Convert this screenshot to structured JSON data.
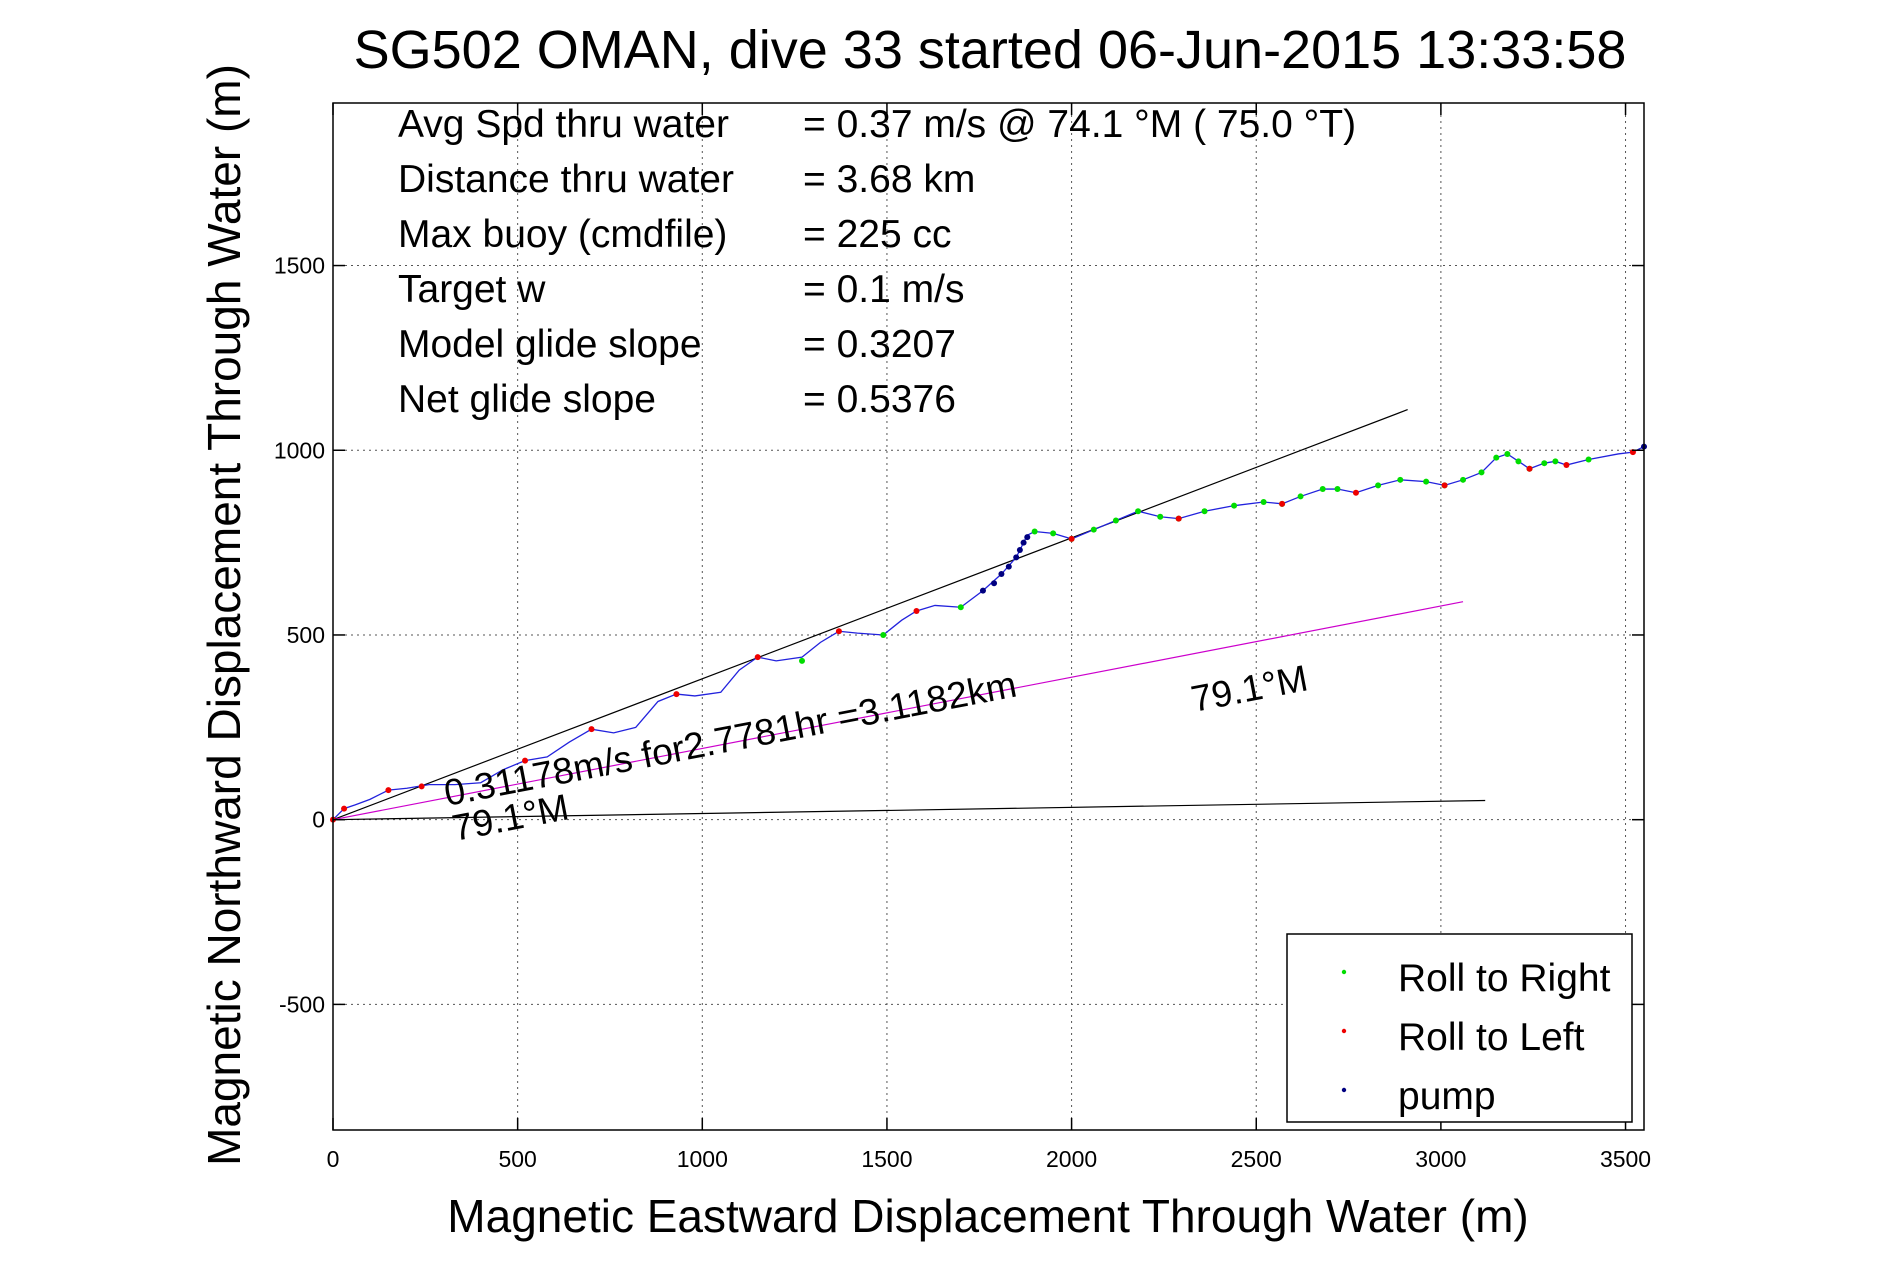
{
  "chart_data": {
    "type": "line",
    "title": "SG502 OMAN, dive 33 started 06-Jun-2015 13:33:58",
    "xlabel": "Magnetic Eastward Displacement Through Water (m)",
    "ylabel": "Magnetic Northward Displacement Through Water (m)",
    "xlim": [
      0,
      3550
    ],
    "ylim": [
      -840,
      1940
    ],
    "xticks": [
      0,
      500,
      1000,
      1500,
      2000,
      2500,
      3000,
      3500
    ],
    "xtick_labels": [
      "0",
      "500",
      "1000",
      "1500",
      "2000",
      "2500",
      "3000",
      "3500"
    ],
    "yticks": [
      -500,
      0,
      500,
      1000,
      1500
    ],
    "ytick_labels": [
      "-500",
      "0",
      "500",
      "1000",
      "1500"
    ],
    "grid": true,
    "legend_position": "bottom-right",
    "info_lines": [
      {
        "label": "Avg Spd thru water",
        "value": "=  0.37 m/s @  74.1 °M ( 75.0 °T)"
      },
      {
        "label": "Distance thru water",
        "value": "=  3.68 km"
      },
      {
        "label": "Max buoy (cmdfile)",
        "value": "= 225 cc"
      },
      {
        "label": "Target w",
        "value": "= 0.1 m/s"
      },
      {
        "label": "Model glide slope",
        "value": "= 0.3207"
      },
      {
        "label": "Net glide slope",
        "value": "= 0.5376"
      }
    ],
    "annotations": {
      "current": "0.31178m/s for2.7781hr =3.1182km",
      "heading_lower": "79.1°M",
      "heading_mid": "79.1°M"
    },
    "reference_lines": [
      {
        "x": [
          0,
          2910
        ],
        "y": [
          0,
          1110
        ],
        "color": "#000000"
      },
      {
        "x": [
          0,
          3120
        ],
        "y": [
          0,
          52
        ],
        "color": "#000000"
      },
      {
        "x": [
          0,
          3060
        ],
        "y": [
          0,
          590
        ],
        "color": "#cc00cc"
      }
    ],
    "track": {
      "color": "#2222dd",
      "x": [
        0,
        30,
        60,
        100,
        150,
        200,
        260,
        330,
        400,
        460,
        520,
        580,
        640,
        700,
        760,
        820,
        880,
        930,
        980,
        1050,
        1100,
        1150,
        1200,
        1270,
        1320,
        1370,
        1420,
        1490,
        1540,
        1580,
        1630,
        1700,
        1760,
        1810,
        1850,
        1870,
        1880,
        1900,
        1950,
        2000,
        2060,
        2120,
        2180,
        2240,
        2290,
        2360,
        2440,
        2520,
        2570,
        2620,
        2680,
        2720,
        2770,
        2830,
        2890,
        2960,
        3010,
        3060,
        3110,
        3150,
        3180,
        3210,
        3240,
        3280,
        3310,
        3340,
        3400,
        3480,
        3520,
        3550
      ],
      "y": [
        0,
        30,
        40,
        55,
        80,
        85,
        95,
        95,
        100,
        135,
        160,
        170,
        210,
        245,
        235,
        250,
        320,
        340,
        335,
        345,
        405,
        440,
        430,
        440,
        480,
        510,
        505,
        500,
        540,
        565,
        580,
        575,
        620,
        665,
        710,
        750,
        770,
        780,
        775,
        760,
        785,
        810,
        835,
        820,
        815,
        835,
        850,
        860,
        855,
        875,
        895,
        895,
        885,
        905,
        920,
        915,
        905,
        920,
        940,
        980,
        990,
        970,
        950,
        965,
        970,
        960,
        975,
        990,
        995,
        1010
      ]
    },
    "series": [
      {
        "name": "Roll to Right",
        "color": "#00dd00",
        "x": [
          1270,
          1490,
          1700,
          1900,
          1950,
          2000,
          2060,
          2120,
          2180,
          2240,
          2290,
          2360,
          2440,
          2520,
          2570,
          2620,
          2680,
          2720,
          2830,
          2890,
          2960,
          3010,
          3060,
          3110,
          3150,
          3180,
          3210,
          3240,
          3280,
          3310,
          3400
        ],
        "y": [
          430,
          500,
          575,
          780,
          775,
          760,
          785,
          810,
          835,
          820,
          815,
          835,
          850,
          860,
          855,
          875,
          895,
          895,
          905,
          920,
          915,
          905,
          920,
          940,
          980,
          990,
          970,
          950,
          965,
          970,
          975
        ]
      },
      {
        "name": "Roll to Left",
        "color": "#ee0000",
        "x": [
          0,
          30,
          150,
          240,
          520,
          700,
          930,
          1150,
          1370,
          1580,
          2000,
          2290,
          2570,
          2770,
          3010,
          3240,
          3340,
          3520
        ],
        "y": [
          0,
          30,
          80,
          90,
          160,
          245,
          340,
          440,
          510,
          565,
          760,
          815,
          855,
          885,
          905,
          950,
          960,
          995
        ]
      },
      {
        "name": "pump",
        "color": "#000080",
        "x": [
          1760,
          1790,
          1810,
          1830,
          1850,
          1860,
          1870,
          1880,
          3550
        ],
        "y": [
          620,
          640,
          665,
          685,
          710,
          730,
          750,
          765,
          1010
        ]
      }
    ]
  }
}
